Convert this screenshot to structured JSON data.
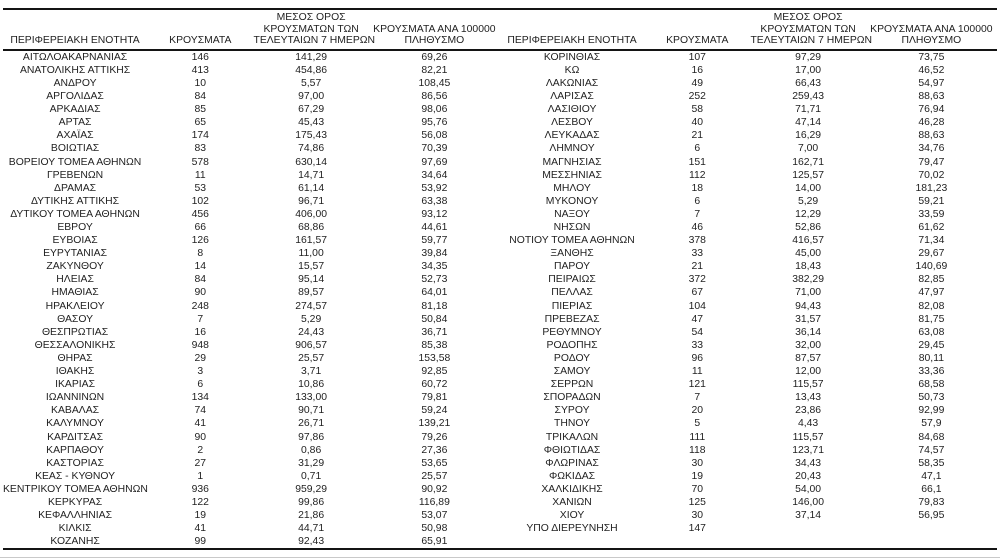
{
  "headers": {
    "region": "ΠΕΡΙΦΕΡΕΙΑΚΗ ΕΝΟΤΗΤΑ",
    "cases": "ΚΡΟΥΣΜΑΤΑ",
    "avg7": "ΜΕΣΟΣ ΟΡΟΣ\nΚΡΟΥΣΜΑΤΩΝ ΤΩΝ\nΤΕΛΕΥΤΑΙΩΝ 7 ΗΜΕΡΩΝ",
    "per100k": "ΚΡΟΥΣΜΑΤΑ ΑΝΑ 100000\nΠΛΗΘΥΣΜΟ"
  },
  "chart_data": {
    "type": "table",
    "columns": [
      "ΠΕΡΙΦΕΡΕΙΑΚΗ ΕΝΟΤΗΤΑ",
      "ΚΡΟΥΣΜΑΤΑ",
      "ΜΕΣΟΣ ΟΡΟΣ ΚΡΟΥΣΜΑΤΩΝ ΤΩΝ ΤΕΛΕΥΤΑΙΩΝ 7 ΗΜΕΡΩΝ",
      "ΚΡΟΥΣΜΑΤΑ ΑΝΑ 100000 ΠΛΗΘΥΣΜΟ"
    ],
    "left_rows": [
      [
        "ΑΙΤΩΛΟΑΚΑΡΝΑΝΙΑΣ",
        "146",
        "141,29",
        "69,26"
      ],
      [
        "ΑΝΑΤΟΛΙΚΗΣ ΑΤΤΙΚΗΣ",
        "413",
        "454,86",
        "82,21"
      ],
      [
        "ΑΝΔΡΟΥ",
        "10",
        "5,57",
        "108,45"
      ],
      [
        "ΑΡΓΟΛΙΔΑΣ",
        "84",
        "97,00",
        "86,56"
      ],
      [
        "ΑΡΚΑΔΙΑΣ",
        "85",
        "67,29",
        "98,06"
      ],
      [
        "ΑΡΤΑΣ",
        "65",
        "45,43",
        "95,76"
      ],
      [
        "ΑΧΑΪΑΣ",
        "174",
        "175,43",
        "56,08"
      ],
      [
        "ΒΟΙΩΤΙΑΣ",
        "83",
        "74,86",
        "70,39"
      ],
      [
        "ΒΟΡΕΙΟΥ ΤΟΜΕΑ ΑΘΗΝΩΝ",
        "578",
        "630,14",
        "97,69"
      ],
      [
        "ΓΡΕΒΕΝΩΝ",
        "11",
        "14,71",
        "34,64"
      ],
      [
        "ΔΡΑΜΑΣ",
        "53",
        "61,14",
        "53,92"
      ],
      [
        "ΔΥΤΙΚΗΣ ΑΤΤΙΚΗΣ",
        "102",
        "96,71",
        "63,38"
      ],
      [
        "ΔΥΤΙΚΟΥ ΤΟΜΕΑ ΑΘΗΝΩΝ",
        "456",
        "406,00",
        "93,12"
      ],
      [
        "ΕΒΡΟΥ",
        "66",
        "68,86",
        "44,61"
      ],
      [
        "ΕΥΒΟΙΑΣ",
        "126",
        "161,57",
        "59,77"
      ],
      [
        "ΕΥΡΥΤΑΝΙΑΣ",
        "8",
        "11,00",
        "39,84"
      ],
      [
        "ΖΑΚΥΝΘΟΥ",
        "14",
        "15,57",
        "34,35"
      ],
      [
        "ΗΛΕΙΑΣ",
        "84",
        "95,14",
        "52,73"
      ],
      [
        "ΗΜΑΘΙΑΣ",
        "90",
        "89,57",
        "64,01"
      ],
      [
        "ΗΡΑΚΛΕΙΟΥ",
        "248",
        "274,57",
        "81,18"
      ],
      [
        "ΘΑΣΟΥ",
        "7",
        "5,29",
        "50,84"
      ],
      [
        "ΘΕΣΠΡΩΤΙΑΣ",
        "16",
        "24,43",
        "36,71"
      ],
      [
        "ΘΕΣΣΑΛΟΝΙΚΗΣ",
        "948",
        "906,57",
        "85,38"
      ],
      [
        "ΘΗΡΑΣ",
        "29",
        "25,57",
        "153,58"
      ],
      [
        "ΙΘΑΚΗΣ",
        "3",
        "3,71",
        "92,85"
      ],
      [
        "ΙΚΑΡΙΑΣ",
        "6",
        "10,86",
        "60,72"
      ],
      [
        "ΙΩΑΝΝΙΝΩΝ",
        "134",
        "133,00",
        "79,81"
      ],
      [
        "ΚΑΒΑΛΑΣ",
        "74",
        "90,71",
        "59,24"
      ],
      [
        "ΚΑΛΥΜΝΟΥ",
        "41",
        "26,71",
        "139,21"
      ],
      [
        "ΚΑΡΔΙΤΣΑΣ",
        "90",
        "97,86",
        "79,26"
      ],
      [
        "ΚΑΡΠΑΘΟΥ",
        "2",
        "0,86",
        "27,36"
      ],
      [
        "ΚΑΣΤΟΡΙΑΣ",
        "27",
        "31,29",
        "53,65"
      ],
      [
        "ΚΕΑΣ - ΚΥΘΝΟΥ",
        "1",
        "0,71",
        "25,57"
      ],
      [
        "ΚΕΝΤΡΙΚΟΥ ΤΟΜΕΑ ΑΘΗΝΩΝ",
        "936",
        "959,29",
        "90,92"
      ],
      [
        "ΚΕΡΚΥΡΑΣ",
        "122",
        "99,86",
        "116,89"
      ],
      [
        "ΚΕΦΑΛΛΗΝΙΑΣ",
        "19",
        "21,86",
        "53,07"
      ],
      [
        "ΚΙΛΚΙΣ",
        "41",
        "44,71",
        "50,98"
      ],
      [
        "ΚΟΖΑΝΗΣ",
        "99",
        "92,43",
        "65,91"
      ]
    ],
    "right_rows": [
      [
        "ΚΟΡΙΝΘΙΑΣ",
        "107",
        "97,29",
        "73,75"
      ],
      [
        "ΚΩ",
        "16",
        "17,00",
        "46,52"
      ],
      [
        "ΛΑΚΩΝΙΑΣ",
        "49",
        "66,43",
        "54,97"
      ],
      [
        "ΛΑΡΙΣΑΣ",
        "252",
        "259,43",
        "88,63"
      ],
      [
        "ΛΑΣΙΘΙΟΥ",
        "58",
        "71,71",
        "76,94"
      ],
      [
        "ΛΕΣΒΟΥ",
        "40",
        "47,14",
        "46,28"
      ],
      [
        "ΛΕΥΚΑΔΑΣ",
        "21",
        "16,29",
        "88,63"
      ],
      [
        "ΛΗΜΝΟΥ",
        "6",
        "7,00",
        "34,76"
      ],
      [
        "ΜΑΓΝΗΣΙΑΣ",
        "151",
        "162,71",
        "79,47"
      ],
      [
        "ΜΕΣΣΗΝΙΑΣ",
        "112",
        "125,57",
        "70,02"
      ],
      [
        "ΜΗΛΟΥ",
        "18",
        "14,00",
        "181,23"
      ],
      [
        "ΜΥΚΟΝΟΥ",
        "6",
        "5,29",
        "59,21"
      ],
      [
        "ΝΑΞΟΥ",
        "7",
        "12,29",
        "33,59"
      ],
      [
        "ΝΗΣΩΝ",
        "46",
        "52,86",
        "61,62"
      ],
      [
        "ΝΟΤΙΟΥ ΤΟΜΕΑ ΑΘΗΝΩΝ",
        "378",
        "416,57",
        "71,34"
      ],
      [
        "ΞΑΝΘΗΣ",
        "33",
        "45,00",
        "29,67"
      ],
      [
        "ΠΑΡΟΥ",
        "21",
        "18,43",
        "140,69"
      ],
      [
        "ΠΕΙΡΑΙΩΣ",
        "372",
        "382,29",
        "82,85"
      ],
      [
        "ΠΕΛΛΑΣ",
        "67",
        "71,00",
        "47,97"
      ],
      [
        "ΠΙΕΡΙΑΣ",
        "104",
        "94,43",
        "82,08"
      ],
      [
        "ΠΡΕΒΕΖΑΣ",
        "47",
        "31,57",
        "81,75"
      ],
      [
        "ΡΕΘΥΜΝΟΥ",
        "54",
        "36,14",
        "63,08"
      ],
      [
        "ΡΟΔΟΠΗΣ",
        "33",
        "32,00",
        "29,45"
      ],
      [
        "ΡΟΔΟΥ",
        "96",
        "87,57",
        "80,11"
      ],
      [
        "ΣΑΜΟΥ",
        "11",
        "12,00",
        "33,36"
      ],
      [
        "ΣΕΡΡΩΝ",
        "121",
        "115,57",
        "68,58"
      ],
      [
        "ΣΠΟΡΑΔΩΝ",
        "7",
        "13,43",
        "50,73"
      ],
      [
        "ΣΥΡΟΥ",
        "20",
        "23,86",
        "92,99"
      ],
      [
        "ΤΗΝΟΥ",
        "5",
        "4,43",
        "57,9"
      ],
      [
        "ΤΡΙΚΑΛΩΝ",
        "111",
        "115,57",
        "84,68"
      ],
      [
        "ΦΘΙΩΤΙΔΑΣ",
        "118",
        "123,71",
        "74,57"
      ],
      [
        "ΦΛΩΡΙΝΑΣ",
        "30",
        "34,43",
        "58,35"
      ],
      [
        "ΦΩΚΙΔΑΣ",
        "19",
        "20,43",
        "47,1"
      ],
      [
        "ΧΑΛΚΙΔΙΚΗΣ",
        "70",
        "54,00",
        "66,1"
      ],
      [
        "ΧΑΝΙΩΝ",
        "125",
        "146,00",
        "79,83"
      ],
      [
        "ΧΙΟΥ",
        "30",
        "37,14",
        "56,95"
      ],
      [
        "ΥΠΟ ΔΙΕΡΕΥΝΗΣΗ",
        "147",
        "",
        ""
      ]
    ]
  }
}
